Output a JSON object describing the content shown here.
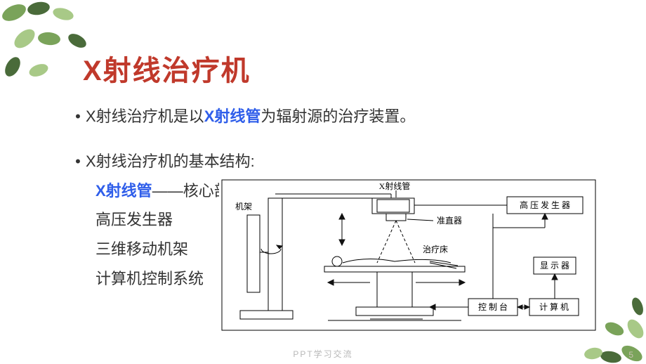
{
  "title": {
    "text": "X射线治疗机",
    "color": "#c0392b"
  },
  "para1": {
    "pre": "X射线治疗机是以",
    "emphasis": "X射线管",
    "emphasis_color": "#2f5eea",
    "post": "为辐射源的治疗装置。"
  },
  "para2_lead": "X射线治疗机的基本结构:",
  "structure_items": [
    {
      "pre": "",
      "em": "X射线管",
      "post": "——核心部件",
      "em_color": "#2f5eea"
    },
    {
      "pre": "高压发生器",
      "em": "",
      "post": ""
    },
    {
      "pre": "三维移动机架",
      "em": "",
      "post": ""
    },
    {
      "pre": "计算机控制系统",
      "em": "",
      "post": ""
    }
  ],
  "diagram_labels": {
    "xray_tube": "X射线管",
    "hv_generator": "高 压 发 生 器",
    "gantry": "机架",
    "collimator": "准直器",
    "bed": "治疗床",
    "console": "控 制 台",
    "computer": "计 算 机",
    "display": "显 示 器"
  },
  "footer": "PPT学习交流",
  "page_number": "5",
  "decor_colors": {
    "leaf_dark": "#4a6b3a",
    "leaf_mid": "#7aa35a",
    "leaf_light": "#a8c987"
  }
}
